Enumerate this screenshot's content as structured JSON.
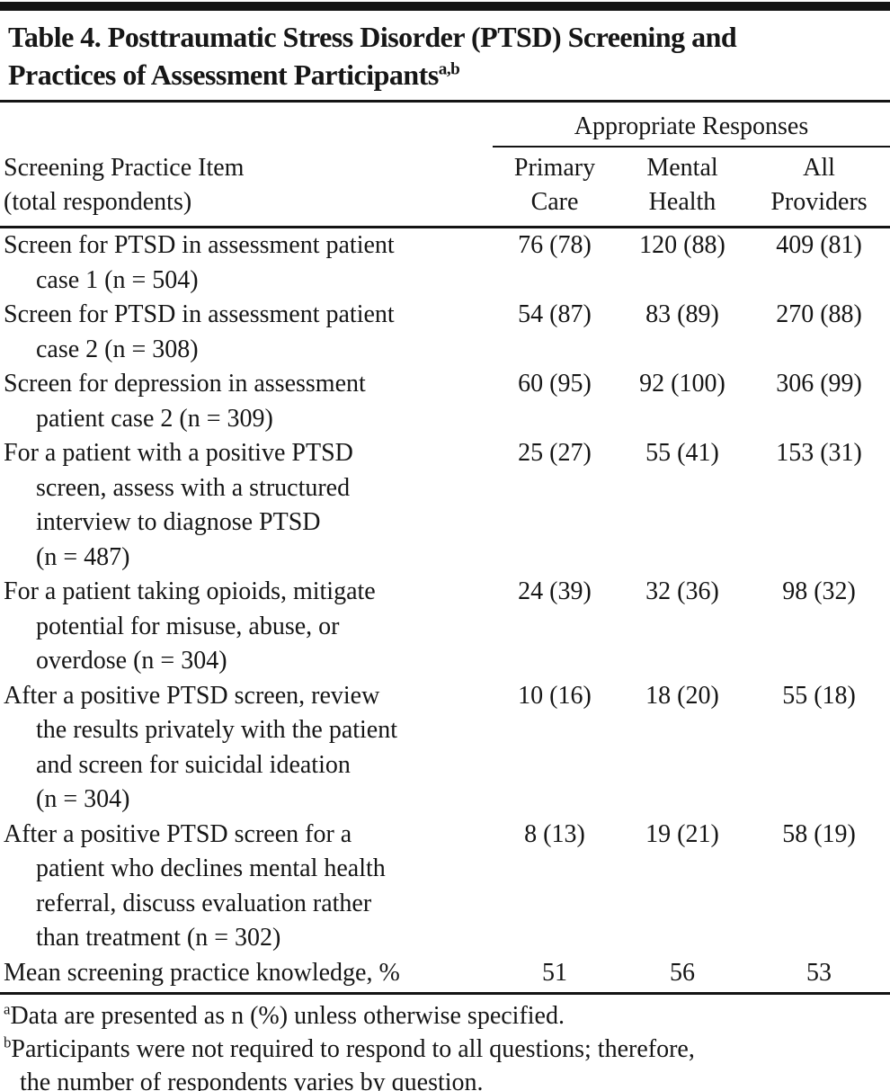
{
  "page": {
    "title": "Table 4. Posttraumatic Stress Disorder (PTSD) Screening and\nPractices of Assessment Participants",
    "title_superscript": "a,b"
  },
  "header": {
    "spanner": "Appropriate Responses",
    "stub": "Screening Practice Item\n(total respondents)",
    "columns": [
      "Primary\nCare",
      "Mental\nHealth",
      "All\nProviders"
    ]
  },
  "rows": [
    {
      "label": "Screen for PTSD in assessment patient\ncase 1 (n = 504)",
      "primary_care": "76 (78)",
      "mental_health": "120 (88)",
      "all_providers": "409 (81)"
    },
    {
      "label": "Screen for PTSD in assessment patient\ncase 2 (n = 308)",
      "primary_care": "54 (87)",
      "mental_health": "83 (89)",
      "all_providers": "270 (88)"
    },
    {
      "label": "Screen for depression in assessment\npatient case 2 (n = 309)",
      "primary_care": "60 (95)",
      "mental_health": "92 (100)",
      "all_providers": "306 (99)"
    },
    {
      "label": "For a patient with a positive PTSD\nscreen, assess with a structured\ninterview to diagnose PTSD\n(n = 487)",
      "primary_care": "25 (27)",
      "mental_health": "55 (41)",
      "all_providers": "153 (31)"
    },
    {
      "label": "For a patient taking opioids, mitigate\npotential for misuse, abuse, or\noverdose (n = 304)",
      "primary_care": "24 (39)",
      "mental_health": "32 (36)",
      "all_providers": "98 (32)"
    },
    {
      "label": "After a positive PTSD screen, review\nthe results privately with the patient\nand screen for suicidal ideation\n(n = 304)",
      "primary_care": "10 (16)",
      "mental_health": "18 (20)",
      "all_providers": "55 (18)"
    },
    {
      "label": "After a positive PTSD screen for a\npatient who declines mental health\nreferral, discuss evaluation rather\nthan treatment (n = 302)",
      "primary_care": "8 (13)",
      "mental_health": "19 (21)",
      "all_providers": "58 (19)"
    },
    {
      "label": "Mean screening practice knowledge, %",
      "primary_care": "51",
      "mental_health": "56",
      "all_providers": "53"
    }
  ],
  "footnotes": [
    {
      "marker": "a",
      "text": "Data are presented as n (%) unless otherwise specified."
    },
    {
      "marker": "b",
      "text": "Participants were not required to respond to all questions; therefore,\nthe number of respondents varies by question."
    }
  ]
}
